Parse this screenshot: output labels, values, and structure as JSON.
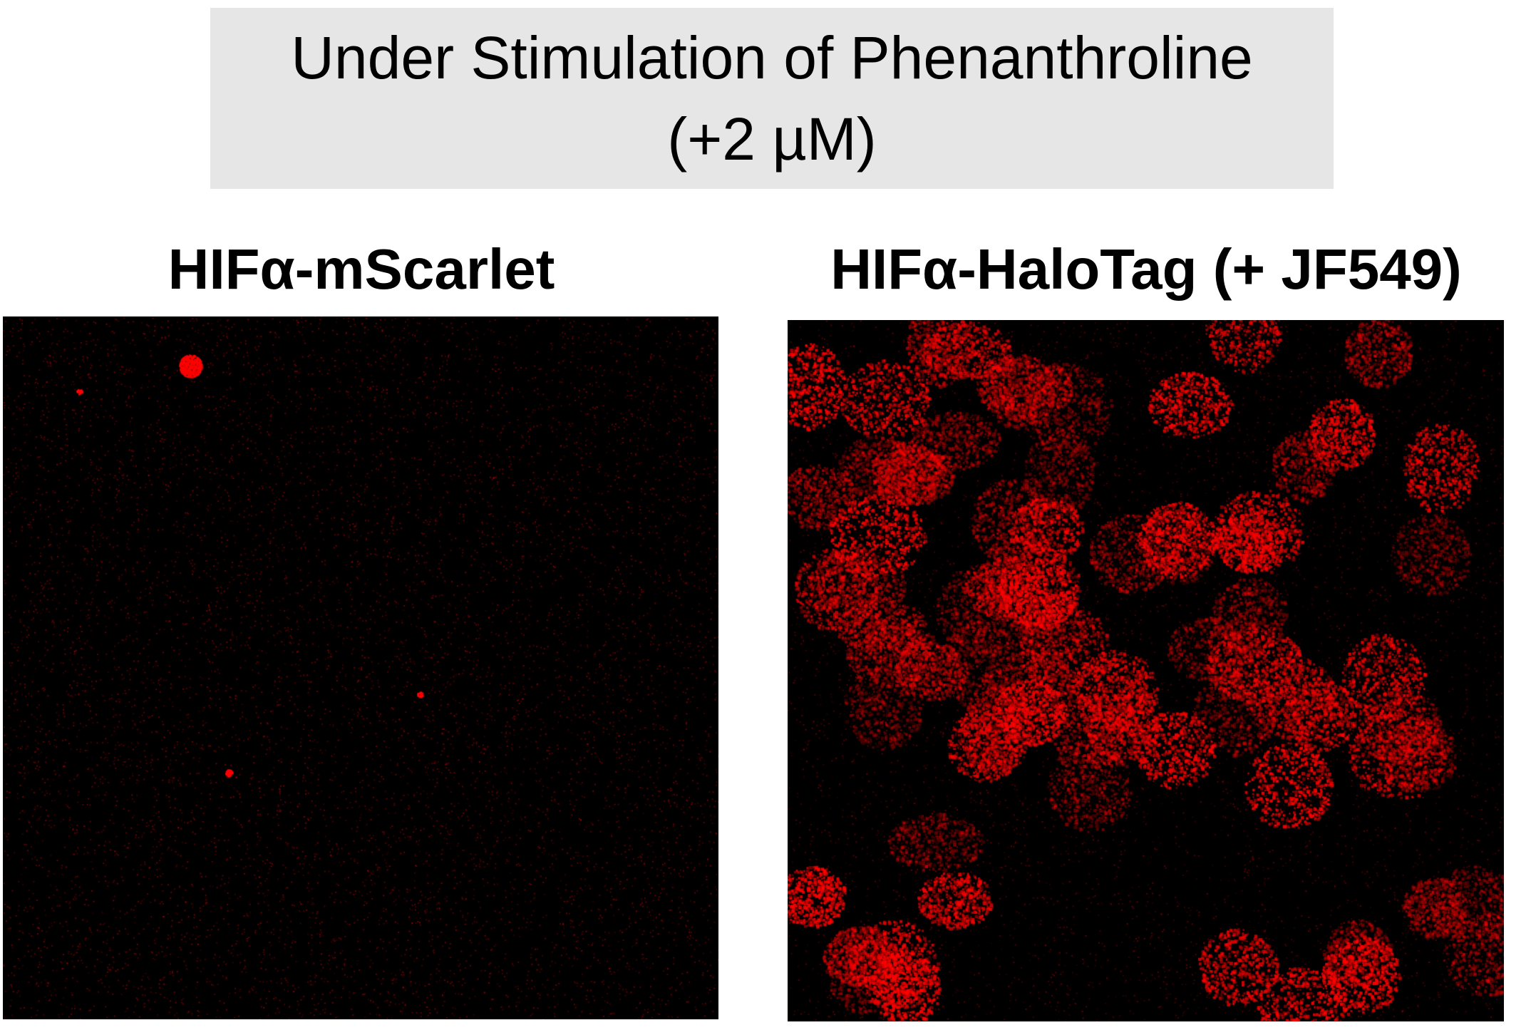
{
  "title": {
    "line1": "Under Stimulation of Phenanthroline",
    "line2": "(+2 µM)"
  },
  "panels": [
    {
      "label": "HIFα-mScarlet",
      "signal": "low",
      "color": "#ff0000"
    },
    {
      "label": "HIFα-HaloTag (+ JF549)",
      "signal": "high",
      "color": "#ff0000"
    }
  ]
}
